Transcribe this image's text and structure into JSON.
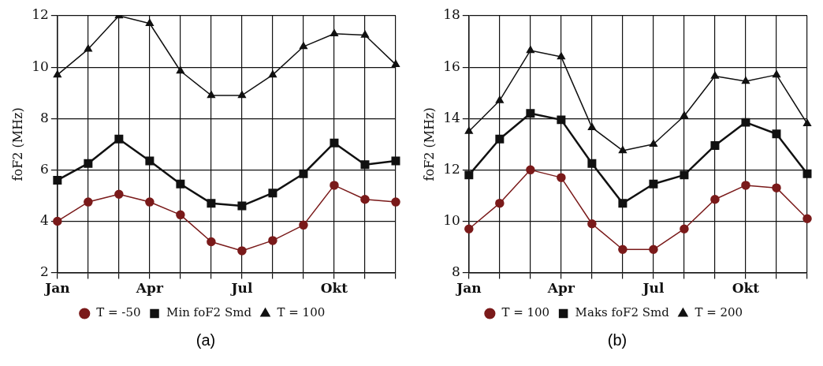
{
  "chart_data": [
    {
      "type": "line",
      "ylabel": "foF2 (MHz)",
      "categories": [
        "Jan",
        null,
        null,
        "Apr",
        null,
        null,
        "Jul",
        null,
        null,
        "Okt",
        null,
        null
      ],
      "ylim": [
        2,
        12
      ],
      "yticks": [
        2,
        4,
        6,
        8,
        10,
        12
      ],
      "grid": true,
      "legend": "bottom",
      "annotations": [
        "(a)"
      ],
      "series": [
        {
          "name": "T = -50",
          "color": "#7a1a1a",
          "marker": "circle",
          "values": [
            4.0,
            4.75,
            5.05,
            4.75,
            4.25,
            3.2,
            2.85,
            3.25,
            3.85,
            5.4,
            4.85,
            4.75
          ]
        },
        {
          "name": "Min foF2 Smd",
          "color": "#111111",
          "marker": "square",
          "values": [
            5.6,
            6.25,
            7.2,
            6.35,
            5.45,
            4.7,
            4.6,
            5.1,
            5.85,
            7.05,
            6.2,
            6.35
          ]
        },
        {
          "name": "T = 100",
          "color": "#111111",
          "marker": "triangle",
          "values": [
            9.7,
            10.7,
            12.0,
            11.7,
            9.85,
            8.9,
            8.9,
            9.7,
            10.8,
            11.3,
            11.25,
            10.1
          ]
        }
      ]
    },
    {
      "type": "line",
      "ylabel": "foF2 (MHz)",
      "categories": [
        "Jan",
        null,
        null,
        "Apr",
        null,
        null,
        "Jul",
        null,
        null,
        "Okt",
        null,
        null
      ],
      "ylim": [
        8,
        18
      ],
      "yticks": [
        8,
        10,
        12,
        14,
        16,
        18
      ],
      "grid": true,
      "legend": "bottom",
      "annotations": [
        "(b)"
      ],
      "series": [
        {
          "name": "T = 100",
          "color": "#7a1a1a",
          "marker": "circle",
          "values": [
            9.7,
            10.7,
            12.0,
            11.7,
            9.9,
            8.9,
            8.9,
            9.7,
            10.85,
            11.4,
            11.3,
            10.1
          ]
        },
        {
          "name": "Maks foF2 Smd",
          "color": "#111111",
          "marker": "square",
          "values": [
            11.8,
            13.2,
            14.2,
            13.95,
            12.25,
            10.7,
            11.45,
            11.8,
            12.95,
            13.85,
            13.4,
            11.85
          ]
        },
        {
          "name": "T = 200",
          "color": "#111111",
          "marker": "triangle",
          "values": [
            13.5,
            14.7,
            16.65,
            16.4,
            13.65,
            12.75,
            13.0,
            14.1,
            15.65,
            15.45,
            15.7,
            13.8
          ]
        }
      ]
    }
  ]
}
